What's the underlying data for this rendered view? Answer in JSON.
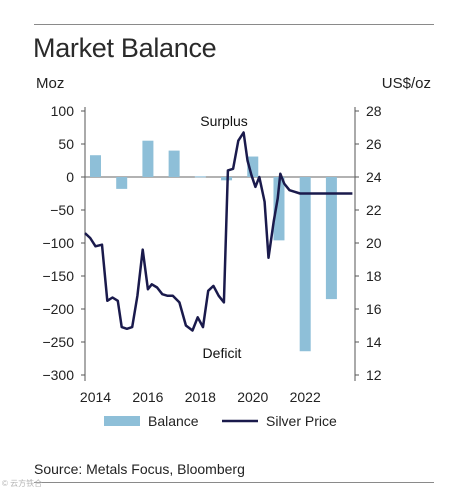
{
  "title": "Market Balance",
  "left_unit": "Moz",
  "right_unit": "US$/oz",
  "source": "Source: Metals Focus, Bloomberg",
  "watermark": "© 云方铁合",
  "chart_data": {
    "type": "bar",
    "title": "Market Balance",
    "ylabel": "Moz",
    "y2label": "US$/oz",
    "ylim": [
      -300,
      100
    ],
    "y2lim": [
      12,
      28
    ],
    "yticks": [
      100,
      50,
      0,
      -50,
      -100,
      -150,
      -200,
      -250,
      -300
    ],
    "y2ticks": [
      28,
      26,
      24,
      22,
      20,
      18,
      16,
      14,
      12
    ],
    "xlim": [
      2013.6,
      2023.9
    ],
    "xticks": [
      2014,
      2016,
      2018,
      2020,
      2022
    ],
    "annotations": [
      "Surplus",
      "Deficit"
    ],
    "legend": [
      "Balance",
      "Silver Price"
    ],
    "grid": false,
    "series": [
      {
        "name": "Balance",
        "type": "bar",
        "color": "#8ebfd8",
        "x": [
          2014,
          2015,
          2016,
          2017,
          2018,
          2019,
          2020,
          2021,
          2022,
          2023
        ],
        "values": [
          33,
          -18,
          55,
          40,
          1,
          -5,
          31,
          -96,
          -264,
          -185
        ]
      },
      {
        "name": "Silver Price",
        "type": "line",
        "color": "#1a1a4c",
        "axis": "right",
        "x": [
          2013.5,
          2013.8,
          2014.0,
          2014.25,
          2014.45,
          2014.65,
          2014.85,
          2015.0,
          2015.2,
          2015.4,
          2015.6,
          2015.8,
          2016.0,
          2016.15,
          2016.35,
          2016.55,
          2016.75,
          2016.95,
          2017.2,
          2017.45,
          2017.7,
          2017.9,
          2018.1,
          2018.3,
          2018.5,
          2018.7,
          2018.9,
          2019.05,
          2019.25,
          2019.45,
          2019.65,
          2019.8,
          2019.95,
          2020.1,
          2020.25,
          2020.45,
          2020.6,
          2020.8,
          2020.95,
          2021.05,
          2021.2,
          2021.4,
          2021.6,
          2021.8,
          2022.0,
          2022.15,
          2022.35,
          2022.5,
          2022.75,
          2023.0,
          2023.3,
          2023.6,
          2023.8
        ],
        "values": [
          20.6,
          20.3,
          19.8,
          19.9,
          16.5,
          16.7,
          16.5,
          14.9,
          14.8,
          14.9,
          16.8,
          19.6,
          17.2,
          17.5,
          17.3,
          16.9,
          16.8,
          16.8,
          16.4,
          15.0,
          14.7,
          15.5,
          14.9,
          17.1,
          17.4,
          16.8,
          16.4,
          24.4,
          24.5,
          26.2,
          26.7,
          25.0,
          24.1,
          23.4,
          24.0,
          22.5,
          19.1,
          21.3,
          22.7,
          24.2,
          23.6,
          23.2,
          23.1,
          23.0,
          23.0,
          23.0,
          23.0,
          23.0,
          23.0,
          23.0,
          23.0,
          23.0,
          23.0
        ]
      }
    ]
  }
}
